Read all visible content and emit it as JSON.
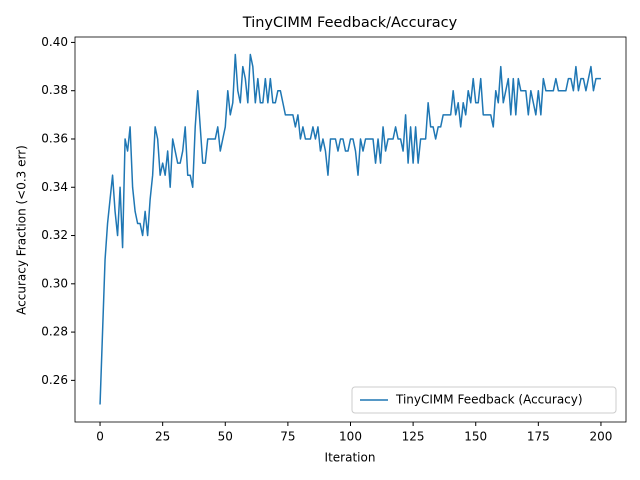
{
  "chart_data": {
    "type": "line",
    "title": "TinyCIMM Feedback/Accuracy",
    "x_label": "Iteration",
    "y_label": "Accuracy Fraction (<0.3 err)",
    "x": [
      0,
      1,
      2,
      3,
      4,
      5,
      6,
      7,
      8,
      9,
      10,
      11,
      12,
      13,
      14,
      15,
      16,
      17,
      18,
      19,
      20,
      21,
      22,
      23,
      24,
      25,
      26,
      27,
      28,
      29,
      30,
      31,
      32,
      33,
      34,
      35,
      36,
      37,
      38,
      39,
      40,
      41,
      42,
      43,
      44,
      45,
      46,
      47,
      48,
      49,
      50,
      51,
      52,
      53,
      54,
      55,
      56,
      57,
      58,
      59,
      60,
      61,
      62,
      63,
      64,
      65,
      66,
      67,
      68,
      69,
      70,
      71,
      72,
      73,
      74,
      75,
      76,
      77,
      78,
      79,
      80,
      81,
      82,
      83,
      84,
      85,
      86,
      87,
      88,
      89,
      90,
      91,
      92,
      93,
      94,
      95,
      96,
      97,
      98,
      99,
      100,
      101,
      102,
      103,
      104,
      105,
      106,
      107,
      108,
      109,
      110,
      111,
      112,
      113,
      114,
      115,
      116,
      117,
      118,
      119,
      120,
      121,
      122,
      123,
      124,
      125,
      126,
      127,
      128,
      129,
      130,
      131,
      132,
      133,
      134,
      135,
      136,
      137,
      138,
      139,
      140,
      141,
      142,
      143,
      144,
      145,
      146,
      147,
      148,
      149,
      150,
      151,
      152,
      153,
      154,
      155,
      156,
      157,
      158,
      159,
      160,
      161,
      162,
      163,
      164,
      165,
      166,
      167,
      168,
      169,
      170,
      171,
      172,
      173,
      174,
      175,
      176,
      177,
      178,
      179,
      180,
      181,
      182,
      183,
      184,
      185,
      186,
      187,
      188,
      189,
      190,
      191,
      192,
      193,
      194,
      195,
      196,
      197,
      198,
      199,
      200
    ],
    "series": [
      {
        "name": "TinyCIMM Feedback (Accuracy)",
        "color": "#1f77b4",
        "values": [
          0.25,
          0.28,
          0.31,
          0.325,
          0.335,
          0.345,
          0.33,
          0.32,
          0.34,
          0.315,
          0.36,
          0.355,
          0.365,
          0.34,
          0.33,
          0.325,
          0.325,
          0.32,
          0.33,
          0.32,
          0.335,
          0.345,
          0.365,
          0.36,
          0.345,
          0.35,
          0.345,
          0.355,
          0.34,
          0.36,
          0.355,
          0.35,
          0.35,
          0.355,
          0.365,
          0.345,
          0.345,
          0.34,
          0.365,
          0.38,
          0.365,
          0.35,
          0.35,
          0.36,
          0.36,
          0.36,
          0.36,
          0.365,
          0.355,
          0.36,
          0.365,
          0.38,
          0.37,
          0.375,
          0.395,
          0.38,
          0.375,
          0.39,
          0.385,
          0.375,
          0.395,
          0.39,
          0.375,
          0.385,
          0.375,
          0.375,
          0.385,
          0.375,
          0.385,
          0.375,
          0.375,
          0.38,
          0.38,
          0.375,
          0.37,
          0.37,
          0.37,
          0.37,
          0.365,
          0.37,
          0.36,
          0.365,
          0.36,
          0.36,
          0.36,
          0.365,
          0.36,
          0.365,
          0.355,
          0.36,
          0.355,
          0.345,
          0.36,
          0.36,
          0.36,
          0.355,
          0.36,
          0.36,
          0.355,
          0.355,
          0.36,
          0.36,
          0.355,
          0.345,
          0.36,
          0.355,
          0.36,
          0.36,
          0.36,
          0.36,
          0.35,
          0.36,
          0.35,
          0.365,
          0.355,
          0.36,
          0.36,
          0.36,
          0.365,
          0.36,
          0.36,
          0.355,
          0.37,
          0.35,
          0.365,
          0.35,
          0.365,
          0.35,
          0.36,
          0.36,
          0.36,
          0.375,
          0.365,
          0.365,
          0.36,
          0.365,
          0.365,
          0.37,
          0.37,
          0.37,
          0.37,
          0.38,
          0.37,
          0.375,
          0.365,
          0.375,
          0.37,
          0.38,
          0.375,
          0.385,
          0.375,
          0.375,
          0.385,
          0.37,
          0.37,
          0.37,
          0.37,
          0.365,
          0.38,
          0.375,
          0.39,
          0.375,
          0.38,
          0.385,
          0.37,
          0.385,
          0.37,
          0.385,
          0.38,
          0.38,
          0.38,
          0.37,
          0.38,
          0.375,
          0.37,
          0.38,
          0.37,
          0.385,
          0.38,
          0.38,
          0.38,
          0.38,
          0.385,
          0.38,
          0.38,
          0.38,
          0.38,
          0.385,
          0.385,
          0.38,
          0.39,
          0.38,
          0.385,
          0.385,
          0.38,
          0.385,
          0.39,
          0.38,
          0.385,
          0.385,
          0.385
        ]
      }
    ],
    "xlim": [
      -10,
      210
    ],
    "ylim": [
      0.24275,
      0.40225
    ],
    "xticks": [
      0,
      25,
      50,
      75,
      100,
      125,
      150,
      175,
      200
    ],
    "yticks": [
      0.26,
      0.28,
      {
        "value": 0.3,
        "label": "0.30"
      },
      0.32,
      0.34,
      0.36,
      0.38,
      {
        "value": 0.4,
        "label": "0.40"
      }
    ],
    "legend": "lower right"
  }
}
